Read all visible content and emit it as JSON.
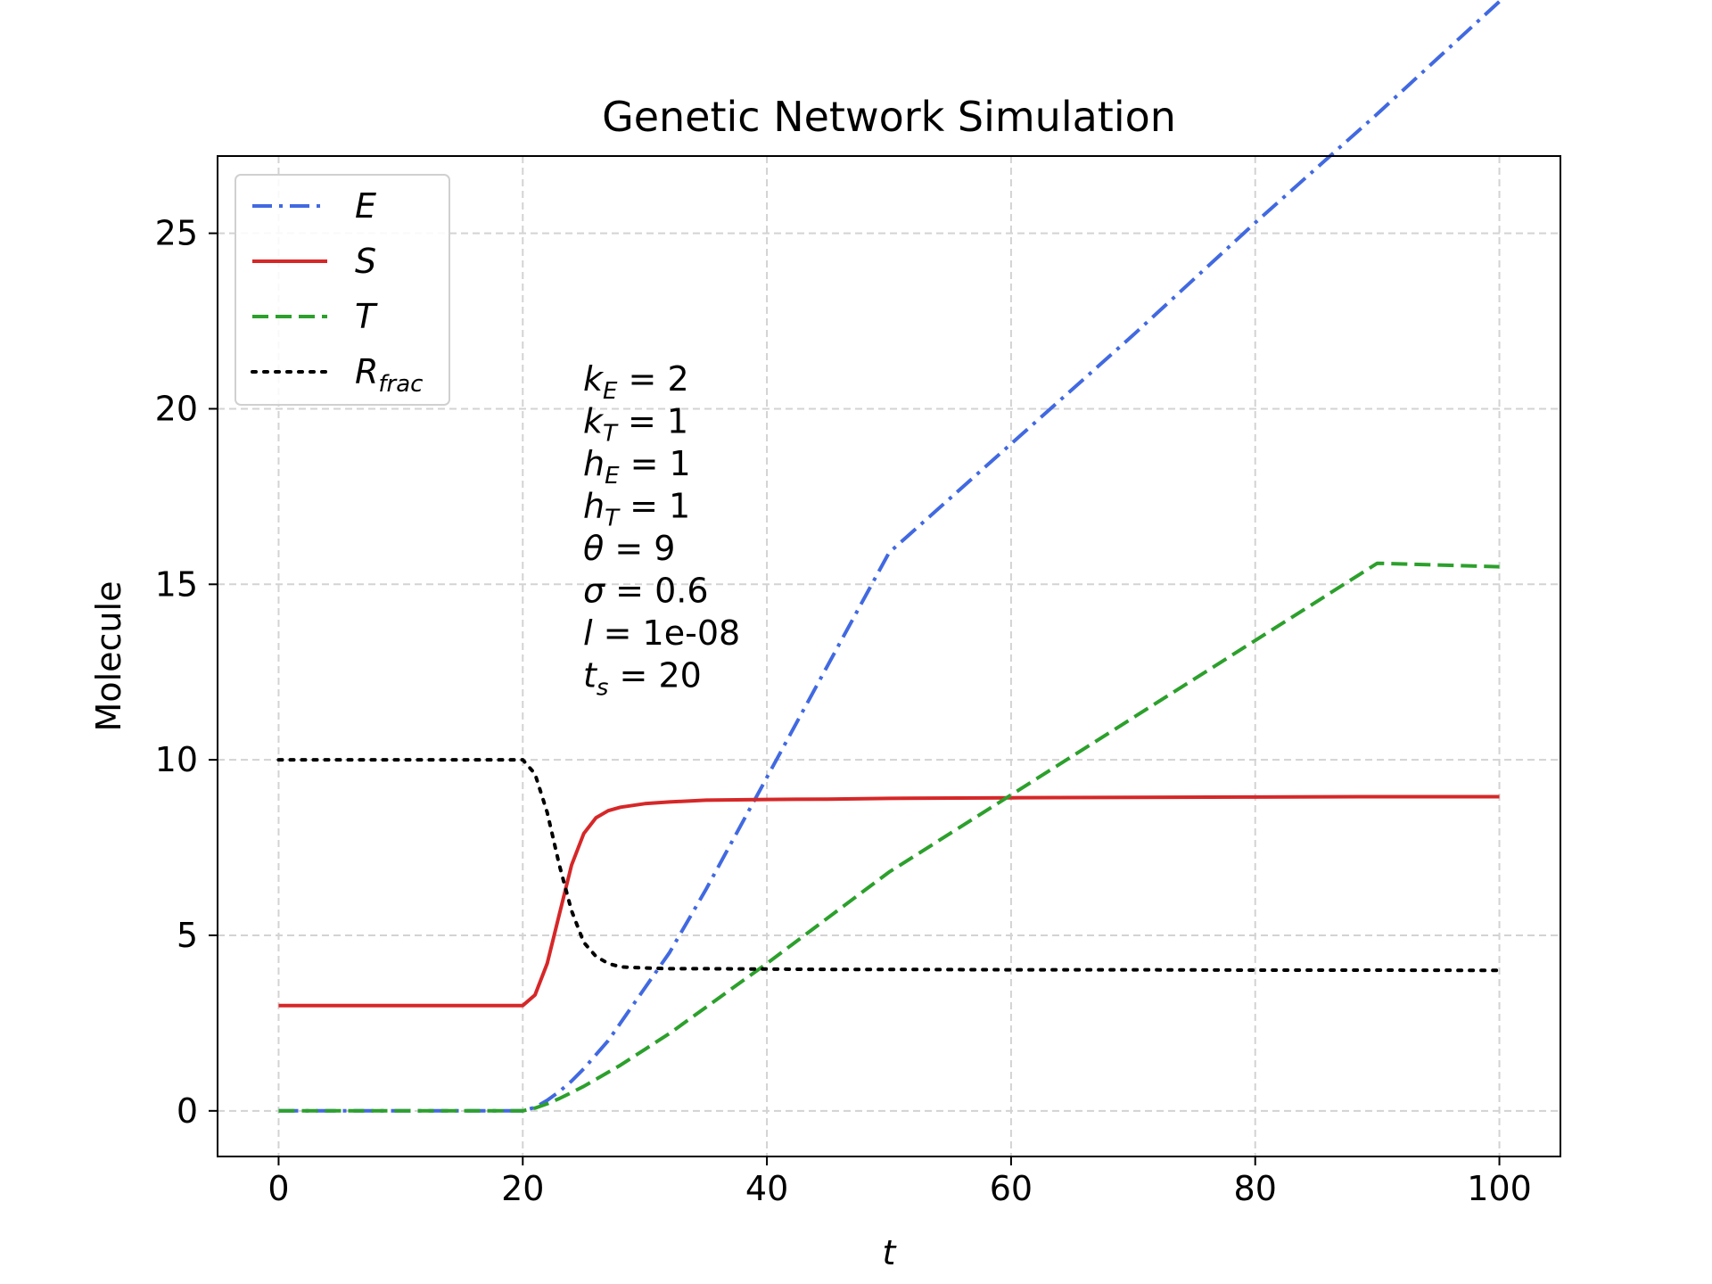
{
  "chart_data": {
    "type": "line",
    "title": "Genetic Network Simulation",
    "xlabel": "t",
    "ylabel": "Molecule",
    "xlim": [
      -5,
      105
    ],
    "ylim": [
      -1.3,
      27.2
    ],
    "xticks": [
      0,
      20,
      40,
      60,
      80,
      100
    ],
    "yticks": [
      0,
      5,
      10,
      15,
      20,
      25
    ],
    "grid": true,
    "legend_position": "top-left",
    "annotations": [
      "k_E = 2",
      "k_T = 1",
      "h_E = 1",
      "h_T = 1",
      "θ = 9",
      "σ = 0.6",
      "l = 1e-08",
      "t_s = 20"
    ],
    "x": [
      0,
      20,
      21,
      22,
      23,
      24,
      25,
      26,
      27,
      28,
      30,
      32,
      35,
      40,
      45,
      50,
      60,
      70,
      80,
      90,
      100
    ],
    "series": [
      {
        "name": "E",
        "color": "#4169e1",
        "style": "dashdot",
        "values": [
          0,
          0,
          0.1,
          0.3,
          0.55,
          0.85,
          1.2,
          1.6,
          2.0,
          2.5,
          3.5,
          4.5,
          6.3,
          9.5,
          12.7,
          15.9,
          19.0,
          22.1,
          25.3,
          28.4,
          31.6
        ]
      },
      {
        "name": "S",
        "color": "#d62728",
        "style": "solid",
        "values": [
          3.0,
          3.0,
          3.3,
          4.2,
          5.6,
          7.0,
          7.9,
          8.35,
          8.55,
          8.65,
          8.75,
          8.8,
          8.85,
          8.87,
          8.88,
          8.9,
          8.92,
          8.93,
          8.94,
          8.95,
          8.95
        ]
      },
      {
        "name": "T",
        "color": "#2ca02c",
        "style": "dashed",
        "values": [
          0,
          0,
          0.08,
          0.2,
          0.35,
          0.52,
          0.7,
          0.9,
          1.1,
          1.3,
          1.75,
          2.2,
          2.95,
          4.2,
          5.5,
          6.8,
          9.0,
          11.2,
          13.4,
          15.6,
          15.5
        ]
      },
      {
        "name": "R_frac",
        "color": "#000000",
        "style": "dotted",
        "values": [
          10.0,
          10.0,
          9.6,
          8.5,
          7.0,
          5.7,
          4.8,
          4.4,
          4.2,
          4.1,
          4.07,
          4.05,
          4.05,
          4.04,
          4.03,
          4.03,
          4.02,
          4.02,
          4.01,
          4.01,
          4.0
        ]
      }
    ]
  }
}
